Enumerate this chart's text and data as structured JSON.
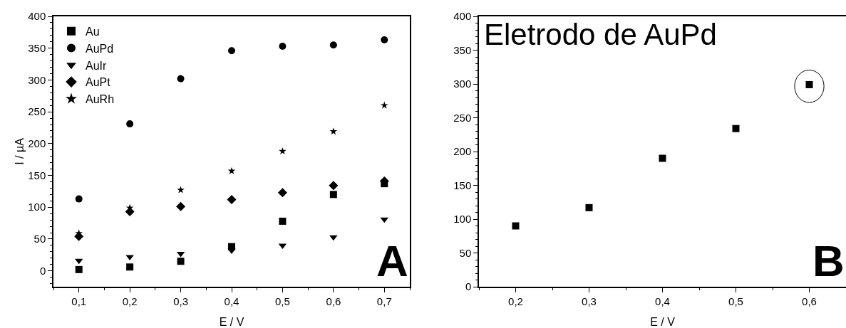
{
  "chart_data": [
    {
      "type": "scatter",
      "xlabel": "E / V",
      "ylabel": "I / µA",
      "x": [
        0.1,
        0.2,
        0.3,
        0.4,
        0.5,
        0.6,
        0.7
      ],
      "xlim": [
        0.05,
        0.75
      ],
      "xticks": [
        {
          "value": 0.1,
          "label": "0,1"
        },
        {
          "value": 0.2,
          "label": "0,2"
        },
        {
          "value": 0.3,
          "label": "0,3"
        },
        {
          "value": 0.4,
          "label": "0,4"
        },
        {
          "value": 0.5,
          "label": "0,5"
        },
        {
          "value": 0.6,
          "label": "0,6"
        },
        {
          "value": 0.7,
          "label": "0,7"
        }
      ],
      "ylim": [
        -25,
        400
      ],
      "yticks": [
        0,
        50,
        100,
        150,
        200,
        250,
        300,
        350,
        400
      ],
      "grid": false,
      "legend": "top left",
      "annotations": [
        "A"
      ],
      "series": [
        {
          "name": "Au",
          "color": "#000000",
          "marker": "square",
          "values": [
            2,
            6,
            15,
            38,
            78,
            120,
            137
          ]
        },
        {
          "name": "AuPd",
          "color": "#000000",
          "marker": "circle",
          "values": [
            113,
            231,
            302,
            346,
            353,
            355,
            363
          ]
        },
        {
          "name": "AuIr",
          "color": "#000000",
          "marker": "triangle",
          "values": [
            16,
            22,
            27,
            32,
            40,
            53,
            81
          ]
        },
        {
          "name": "AuPt",
          "color": "#000000",
          "marker": "diamond",
          "values": [
            54,
            93,
            101,
            112,
            123,
            134,
            141
          ]
        },
        {
          "name": "AuRh",
          "color": "#000000",
          "marker": "star",
          "values": [
            59,
            99,
            127,
            157,
            188,
            219,
            260
          ]
        }
      ]
    },
    {
      "type": "scatter",
      "xlabel": "E / V",
      "x": [
        0.2,
        0.3,
        0.4,
        0.5,
        0.6
      ],
      "xlim": [
        0.15,
        0.65
      ],
      "xticks": [
        {
          "value": 0.2,
          "label": "0,2"
        },
        {
          "value": 0.3,
          "label": "0,3"
        },
        {
          "value": 0.4,
          "label": "0,4"
        },
        {
          "value": 0.5,
          "label": "0,5"
        },
        {
          "value": 0.6,
          "label": "0,6"
        }
      ],
      "ylim": [
        0,
        400
      ],
      "yticks": [
        0,
        50,
        100,
        150,
        200,
        250,
        300,
        350,
        400
      ],
      "grid": false,
      "legend": false,
      "marker": "square",
      "annotations": [
        "Eletrodo de AuPd",
        "B"
      ],
      "series": [
        {
          "color": "#000000",
          "values": [
            90,
            117,
            190,
            234,
            299
          ]
        }
      ]
    }
  ]
}
